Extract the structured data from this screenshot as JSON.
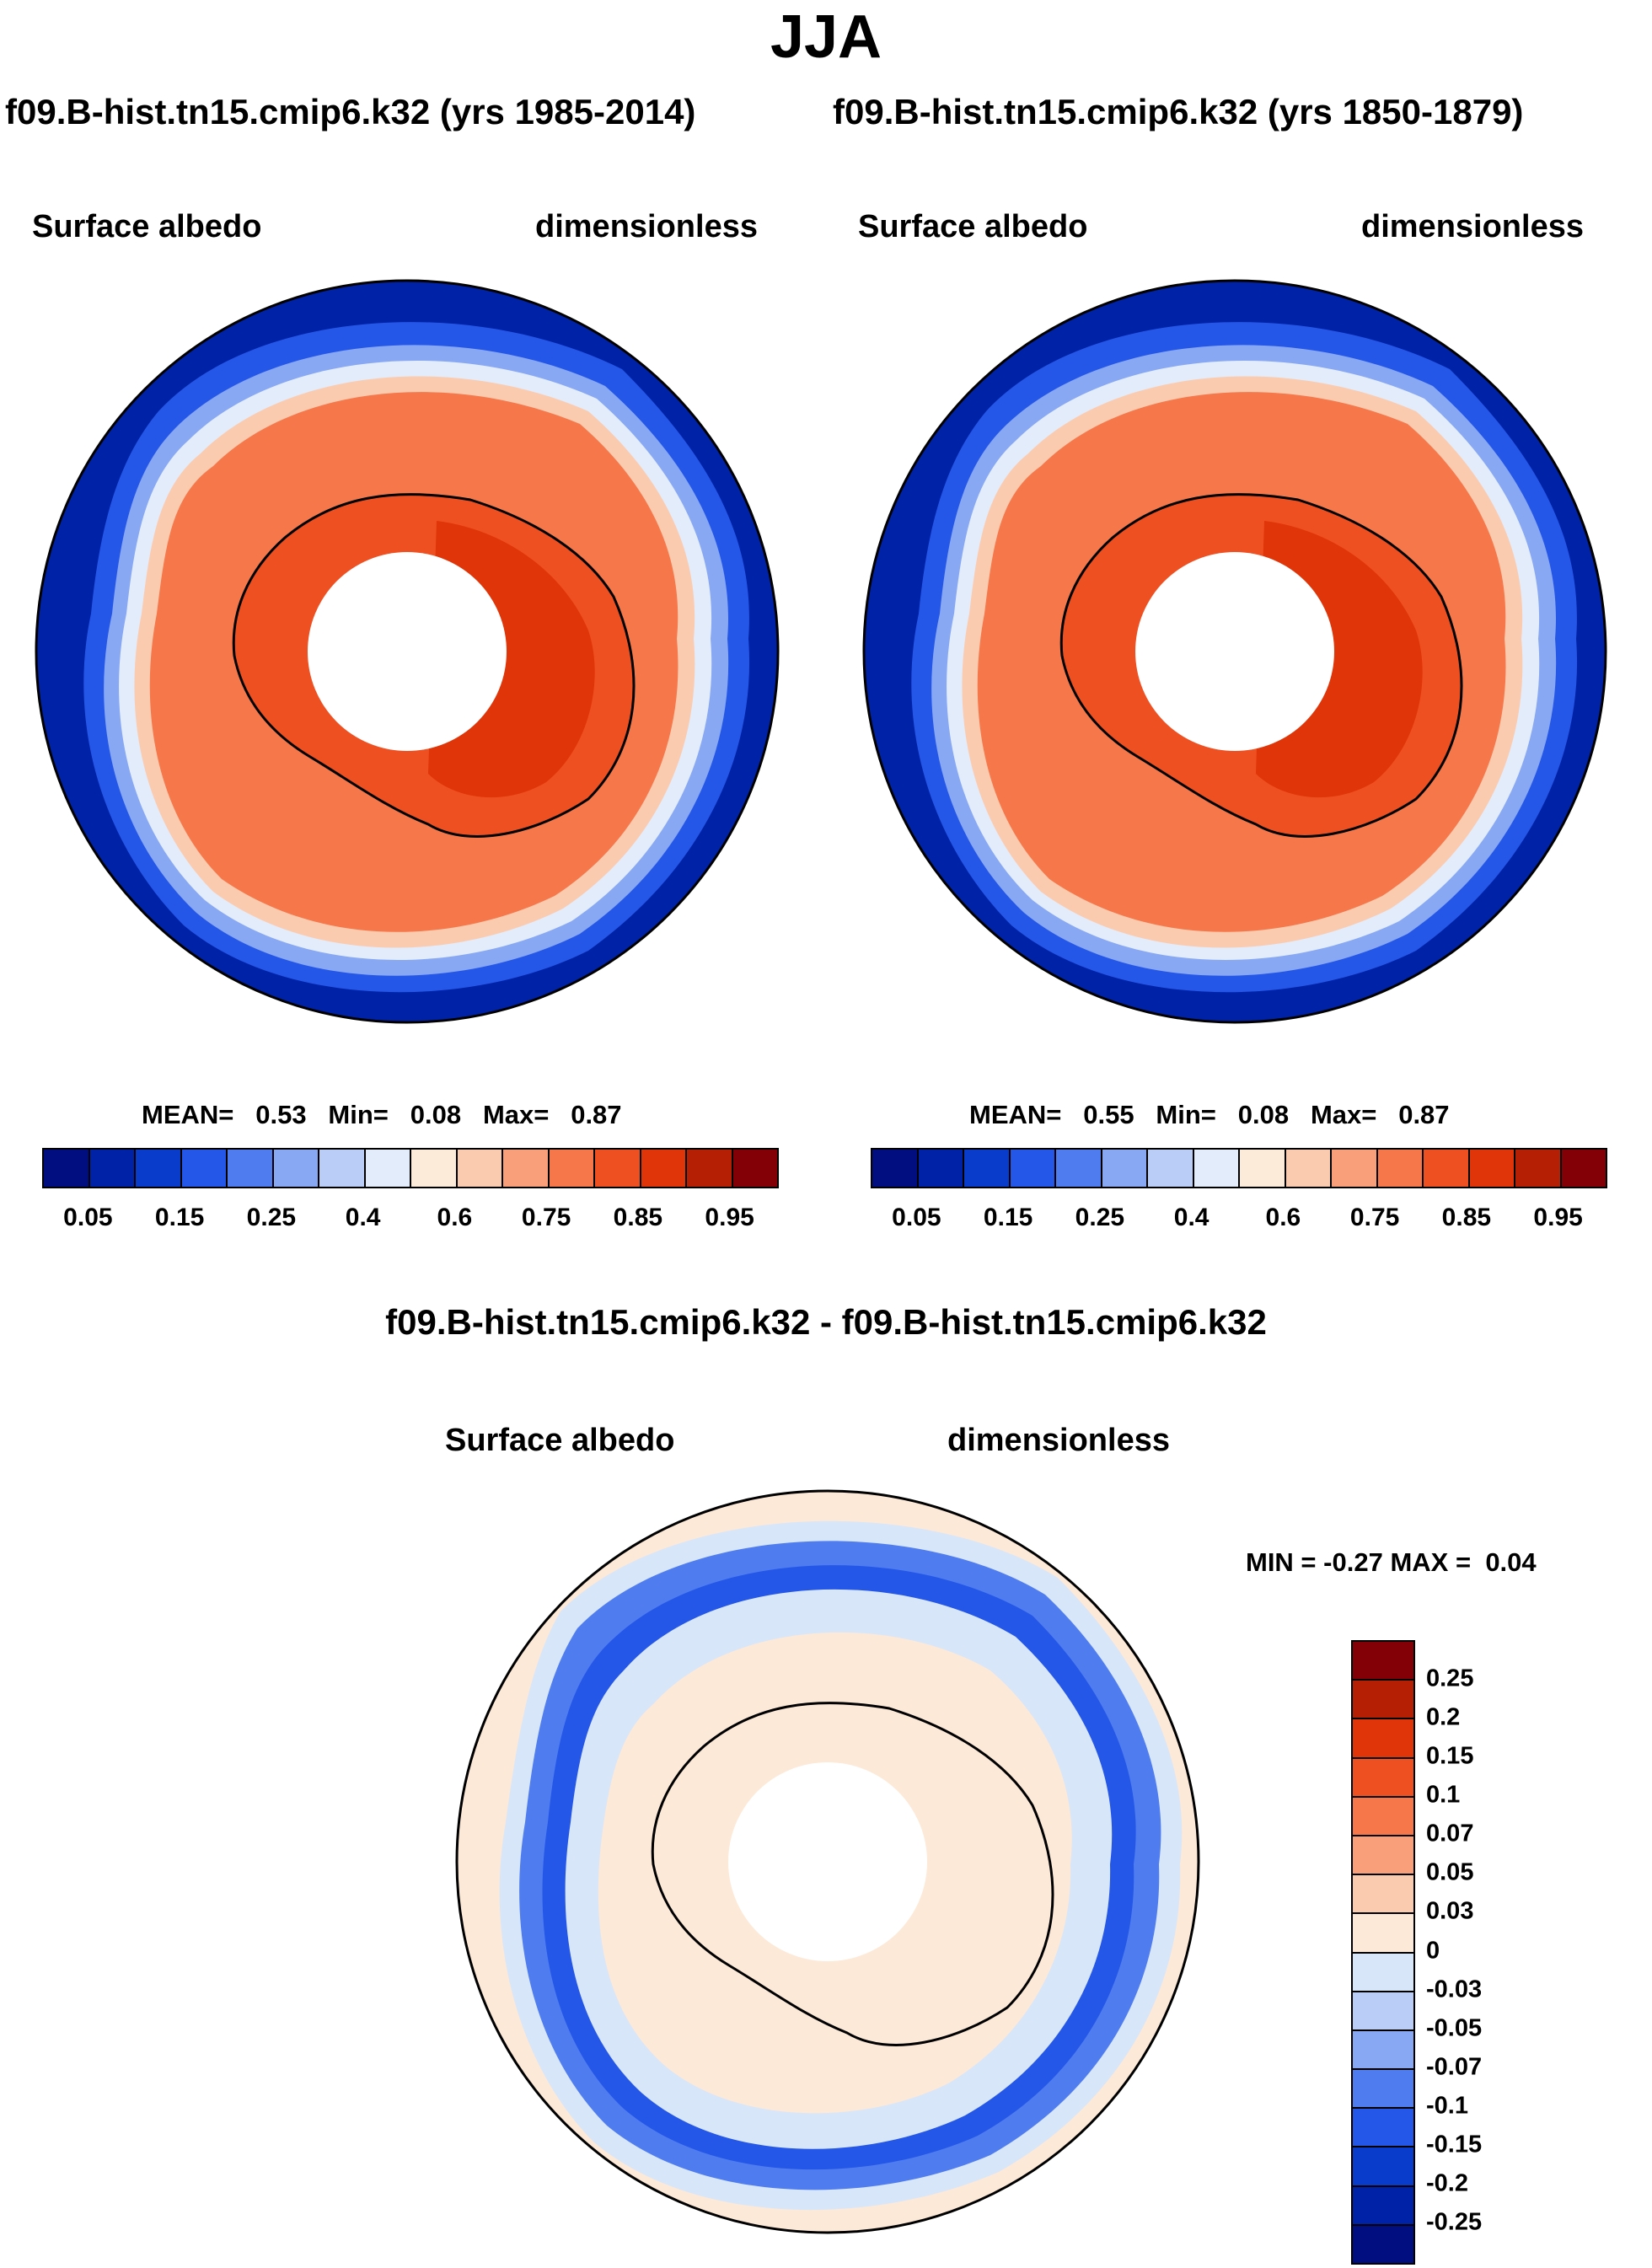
{
  "title": "JJA",
  "panels": [
    {
      "subtitle": "f09.B-hist.tn15.cmip6.k32 (yrs 1985-2014)",
      "left_label": "Surface albedo",
      "right_label": "dimensionless",
      "stats": {
        "mean_label": "MEAN=",
        "mean": "0.53",
        "min_label": "Min=",
        "min": "0.08",
        "max_label": "Max=",
        "max": "0.87"
      }
    },
    {
      "subtitle": "f09.B-hist.tn15.cmip6.k32 (yrs 1850-1879)",
      "left_label": "Surface albedo",
      "right_label": "dimensionless",
      "stats": {
        "mean_label": "MEAN=",
        "mean": "0.55",
        "min_label": "Min=",
        "min": "0.08",
        "max_label": "Max=",
        "max": "0.87"
      }
    }
  ],
  "diff_panel": {
    "title": "f09.B-hist.tn15.cmip6.k32 - f09.B-hist.tn15.cmip6.k32",
    "left_label": "Surface albedo",
    "right_label": "dimensionless",
    "stats": {
      "min_label": "MIN =",
      "min": "-0.27",
      "max_label": "MAX =",
      "max": "0.04"
    }
  },
  "colorbar_abs": {
    "colors": [
      "#000e7f",
      "#0022a6",
      "#0a3ccc",
      "#2457e8",
      "#4f7df0",
      "#88a8f3",
      "#b9cdf7",
      "#e2ecfb",
      "#fdebd9",
      "#fbcbb0",
      "#f9a07a",
      "#f5774a",
      "#ef5021",
      "#df3508",
      "#b52005",
      "#830006"
    ],
    "ticks": [
      "0.05",
      "0.15",
      "0.25",
      "0.4",
      "0.6",
      "0.75",
      "0.85",
      "0.95"
    ]
  },
  "colorbar_diff": {
    "colors": [
      "#000e7f",
      "#0022a6",
      "#0a3ccc",
      "#2457e8",
      "#4f7df0",
      "#88a8f3",
      "#b9cdf7",
      "#d8e6fa",
      "#fde9d7",
      "#fbcbb0",
      "#f9a07a",
      "#f5774a",
      "#ef5021",
      "#df3508",
      "#b52005",
      "#830006"
    ],
    "ticks": [
      "-0.25",
      "-0.2",
      "-0.15",
      "-0.1",
      "-0.07",
      "-0.05",
      "-0.03",
      "0",
      "0.03",
      "0.05",
      "0.07",
      "0.1",
      "0.15",
      "0.2",
      "0.25"
    ]
  }
}
